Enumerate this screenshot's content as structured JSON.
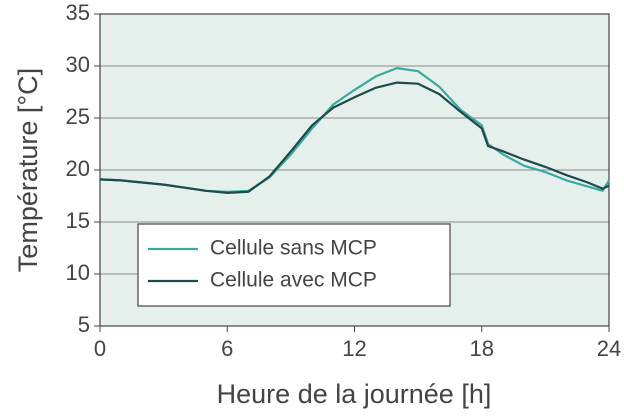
{
  "chart_data": {
    "type": "line",
    "xlabel": "Heure de la journée [h]",
    "ylabel": "Température [°C]",
    "x": [
      0,
      1,
      2,
      3,
      4,
      5,
      6,
      7,
      8,
      9,
      10,
      11,
      12,
      13,
      14,
      15,
      16,
      17,
      18,
      18.3,
      19,
      20,
      21,
      22,
      23,
      23.7,
      24
    ],
    "series": [
      {
        "name": "Cellule sans MCP",
        "color": "#3aa99f",
        "values": [
          19.1,
          19.0,
          18.8,
          18.6,
          18.3,
          18.0,
          17.9,
          18.0,
          19.3,
          21.5,
          24.0,
          26.3,
          27.7,
          29.0,
          29.8,
          29.5,
          28.0,
          25.8,
          24.3,
          22.5,
          21.5,
          20.4,
          19.8,
          19.0,
          18.4,
          18.0,
          19.0
        ]
      },
      {
        "name": "Cellule avec MCP",
        "color": "#1f4a4a",
        "values": [
          19.1,
          19.0,
          18.8,
          18.6,
          18.3,
          18.0,
          17.8,
          17.9,
          19.4,
          21.8,
          24.3,
          26.0,
          27.0,
          27.9,
          28.4,
          28.3,
          27.3,
          25.6,
          24.0,
          22.3,
          21.8,
          21.0,
          20.3,
          19.5,
          18.8,
          18.2,
          18.5
        ]
      }
    ],
    "xlim": [
      0,
      24
    ],
    "xticks": [
      0,
      6,
      12,
      18,
      24
    ],
    "ylim": [
      5,
      35
    ],
    "yticks": [
      5,
      10,
      15,
      20,
      25,
      30,
      35
    ],
    "grid": true,
    "legend": "lower left"
  }
}
